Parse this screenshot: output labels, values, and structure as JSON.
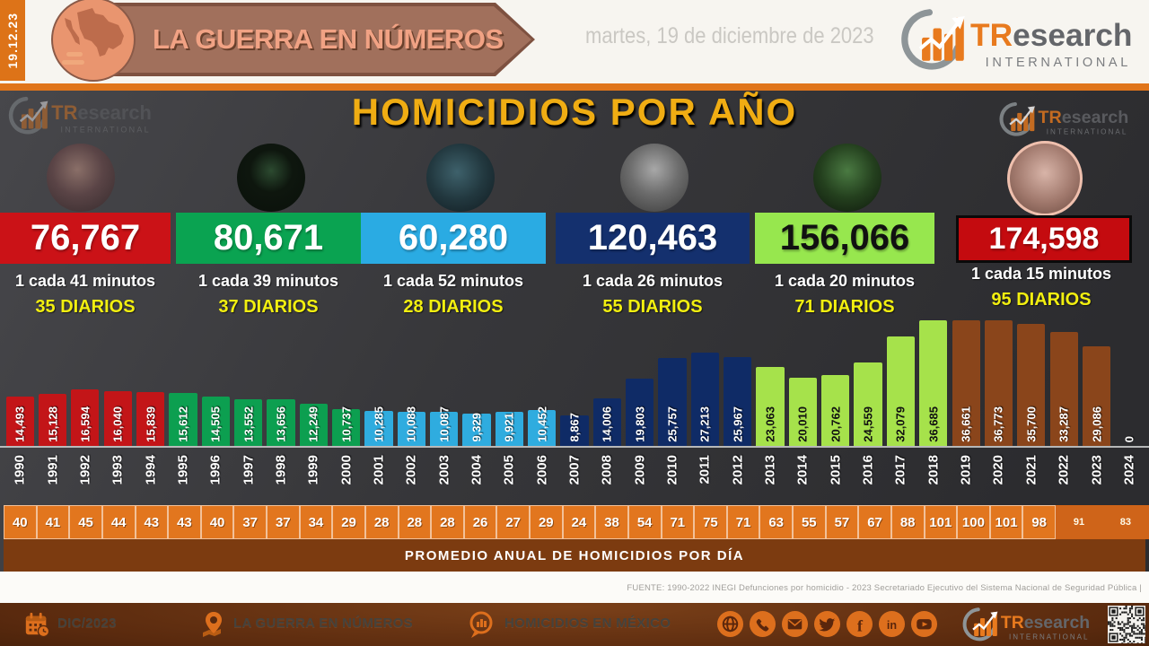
{
  "header": {
    "date_stamp": "19.12.23",
    "banner_title": "LA GUERRA EN NÚMEROS",
    "date_full": "martes, 19 de diciembre de 2023",
    "brand": {
      "tr": "TR",
      "rest": "esearch",
      "sub": "INTERNATIONAL"
    }
  },
  "main": {
    "presidents": [
      {
        "total": "76,767",
        "rate": "1 cada 41 minutos",
        "daily": "35 DIARIOS",
        "box_color": "#cb1217",
        "number_color": "#ffffff"
      },
      {
        "total": "80,671",
        "rate": "1 cada 39 minutos",
        "daily": "37 DIARIOS",
        "box_color": "#0aa351",
        "number_color": "#ffffff"
      },
      {
        "total": "60,280",
        "rate": "1 cada 52 minutos",
        "daily": "28 DIARIOS",
        "box_color": "#2aabe3",
        "number_color": "#ffffff"
      },
      {
        "total": "120,463",
        "rate": "1 cada 26 minutos",
        "daily": "55 DIARIOS",
        "box_color": "#14306e",
        "number_color": "#ffffff"
      },
      {
        "total": "156,066",
        "rate": "1 cada 20 minutos",
        "daily": "71 DIARIOS",
        "box_color": "#97e74e",
        "number_color": "#111111"
      },
      {
        "total": "174,598",
        "rate": "1 cada 15 minutos",
        "daily": "95 DIARIOS",
        "box_color": "#c40b0f",
        "number_color": "#ffffff"
      }
    ]
  },
  "chart_data": {
    "type": "bar",
    "title": "HOMICIDIOS POR AÑO",
    "x": [
      "1990",
      "1991",
      "1992",
      "1993",
      "1994",
      "1995",
      "1996",
      "1997",
      "1998",
      "1999",
      "2000",
      "2001",
      "2002",
      "2003",
      "2004",
      "2005",
      "2006",
      "2007",
      "2008",
      "2009",
      "2010",
      "2011",
      "2012",
      "2013",
      "2014",
      "2015",
      "2016",
      "2017",
      "2018",
      "2019",
      "2020",
      "2021",
      "2022",
      "2023",
      "2024"
    ],
    "values": [
      14493,
      15128,
      16594,
      16040,
      15839,
      15612,
      14505,
      13552,
      13656,
      12249,
      10737,
      10285,
      10088,
      10087,
      9329,
      9921,
      10452,
      8867,
      14006,
      19803,
      25757,
      27213,
      25967,
      23063,
      20010,
      20762,
      24559,
      32079,
      36685,
      36661,
      36773,
      35700,
      33287,
      29086,
      0
    ],
    "value_labels": [
      "14,493",
      "15,128",
      "16,594",
      "16,040",
      "15,839",
      "15,612",
      "14,505",
      "13,552",
      "13,656",
      "12,249",
      "10,737",
      "10,285",
      "10,088",
      "10,087",
      "9,329",
      "9,921",
      "10,452",
      "8,867",
      "14,006",
      "19,803",
      "25,757",
      "27,213",
      "25,967",
      "23,063",
      "20,010",
      "20,762",
      "24,559",
      "32,079",
      "36,685",
      "36,661",
      "36,773",
      "35,700",
      "33,287",
      "29,086",
      "0"
    ],
    "bar_colors": [
      "#c31518",
      "#c31518",
      "#c31518",
      "#c31518",
      "#c31518",
      "#0c9f50",
      "#0c9f50",
      "#0c9f50",
      "#0c9f50",
      "#0c9f50",
      "#0c9f50",
      "#2facdf",
      "#2facdf",
      "#2facdf",
      "#2facdf",
      "#2facdf",
      "#2facdf",
      "#0f2b66",
      "#0f2b66",
      "#0f2b66",
      "#0f2b66",
      "#0f2b66",
      "#0f2b66",
      "#a6e24b",
      "#a6e24b",
      "#a6e24b",
      "#a6e24b",
      "#a6e24b",
      "#a6e24b",
      "#8a451b",
      "#8a451b",
      "#8a451b",
      "#8a451b",
      "#8a451b",
      null
    ],
    "label_colors": [
      "#ffffff",
      "#ffffff",
      "#ffffff",
      "#ffffff",
      "#ffffff",
      "#ffffff",
      "#ffffff",
      "#ffffff",
      "#ffffff",
      "#ffffff",
      "#ffffff",
      "#ffffff",
      "#ffffff",
      "#ffffff",
      "#ffffff",
      "#ffffff",
      "#ffffff",
      "#ffffff",
      "#ffffff",
      "#ffffff",
      "#ffffff",
      "#ffffff",
      "#ffffff",
      "#111111",
      "#111111",
      "#111111",
      "#111111",
      "#111111",
      "#111111",
      "#ffffff",
      "#ffffff",
      "#ffffff",
      "#ffffff",
      "#ffffff",
      "#ffffff"
    ],
    "ylim": [
      0,
      36773
    ],
    "grid": false,
    "legend": false,
    "daily_averages": [
      40,
      41,
      45,
      44,
      43,
      43,
      40,
      37,
      37,
      34,
      29,
      28,
      28,
      28,
      26,
      27,
      29,
      24,
      38,
      54,
      71,
      75,
      71,
      63,
      55,
      57,
      67,
      88,
      101,
      100,
      101,
      98,
      91,
      83
    ],
    "avg_caption": "PROMEDIO ANUAL DE HOMICIDIOS POR DÍA"
  },
  "source_line": "FUENTE: 1990-2022 INEGI Defunciones  por homicidio  - 2023 Secretariado  Ejecutivo  del  Sistema  Nacional  de Seguridad  Pública |",
  "footer": {
    "date": "DIC/2023",
    "program": "LA GUERRA  EN NÚMEROS",
    "topic": "HOMICIDIOS  EN MÉXICO",
    "social": [
      "web",
      "phone",
      "email",
      "twitter",
      "facebook",
      "linkedin",
      "youtube"
    ]
  }
}
